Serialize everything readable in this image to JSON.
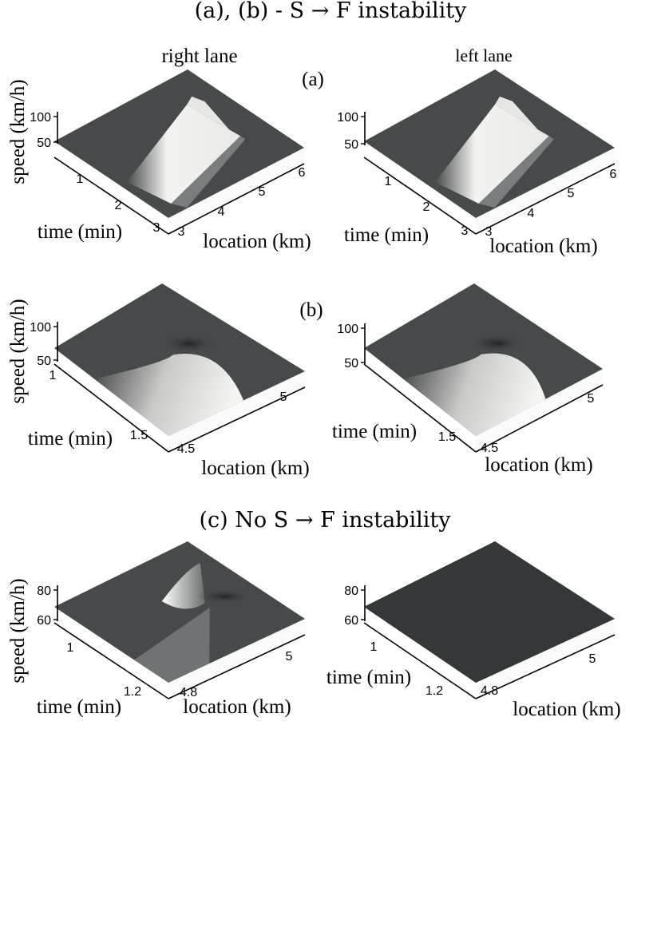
{
  "headings": {
    "ab": "(a), (b) -  S → F instability",
    "c": "(c) No S → F instability"
  },
  "columns": {
    "right": "right lane",
    "left": "left lane"
  },
  "row_tags": {
    "a": "(a)",
    "b": "(b)"
  },
  "colors": {
    "surface_dark": "#474a4b",
    "surface_light": "#f2f2f0",
    "valley": "#303334",
    "axis": "#000000",
    "text": "#000000"
  },
  "chart_data": [
    {
      "id": "a-right",
      "type": "surface",
      "title": "",
      "zlabel": "speed (km/h)",
      "ylabel": "time (min)",
      "xlabel": "location (km)",
      "zticks": [
        "100",
        "50"
      ],
      "yticks": [
        "1",
        "2",
        "3"
      ],
      "xticks": [
        "3",
        "4",
        "5",
        "6"
      ],
      "shape": "jam",
      "peak_drop": 0.85
    },
    {
      "id": "a-left",
      "type": "surface",
      "title": "",
      "zlabel": "",
      "ylabel": "time (min)",
      "xlabel": "location (km)",
      "zticks": [
        "100",
        "50"
      ],
      "yticks": [
        "1",
        "2",
        "3"
      ],
      "xticks": [
        "3",
        "4",
        "5",
        "6"
      ],
      "shape": "jam",
      "peak_drop": 0.85
    },
    {
      "id": "b-right",
      "type": "surface",
      "title": "",
      "zlabel": "speed (km/h)",
      "ylabel": "time (min)",
      "xlabel": "location (km)",
      "zticks": [
        "100",
        "50"
      ],
      "yticks": [
        "1",
        "1.5"
      ],
      "xticks": [
        "4.5",
        "5"
      ],
      "shape": "wave",
      "peak_drop": 0.6
    },
    {
      "id": "b-left",
      "type": "surface",
      "title": "",
      "zlabel": "",
      "ylabel": "time (min)",
      "xlabel": "location (km)",
      "zticks": [
        "100",
        "50"
      ],
      "yticks": [
        "1.5"
      ],
      "xticks": [
        "4.5",
        "5"
      ],
      "shape": "wave",
      "peak_drop": 0.55
    },
    {
      "id": "c-right",
      "type": "surface",
      "title": "",
      "zlabel": "speed (km/h)",
      "ylabel": "time (min)",
      "xlabel": "location (km)",
      "zticks": [
        "80",
        "60"
      ],
      "yticks": [
        "1",
        "1.2"
      ],
      "xticks": [
        "4.8",
        "5"
      ],
      "shape": "dip",
      "peak_drop": 0.3
    },
    {
      "id": "c-left",
      "type": "surface",
      "title": "",
      "zlabel": "",
      "ylabel": "time (min)",
      "xlabel": "location (km)",
      "zticks": [
        "80",
        "60"
      ],
      "yticks": [
        "1",
        "1.2"
      ],
      "xticks": [
        "4.8",
        "5"
      ],
      "shape": "flat",
      "peak_drop": 0
    }
  ]
}
